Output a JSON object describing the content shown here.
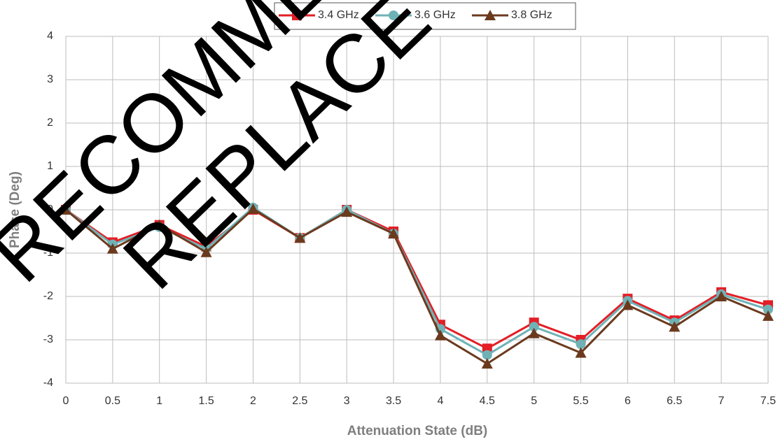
{
  "chart_data": {
    "type": "line",
    "x_label": "Attenuation State (dB)",
    "y_label": "Phase (Deg)",
    "x": [
      0,
      0.5,
      1,
      1.5,
      2,
      2.5,
      3,
      3.5,
      4,
      4.5,
      5,
      5.5,
      6,
      6.5,
      7,
      7.5
    ],
    "series": [
      {
        "name": "3.4 GHz",
        "color": "#e31e26",
        "marker": "square",
        "values": [
          0,
          -0.75,
          -0.35,
          -0.85,
          0,
          -0.65,
          0,
          -0.5,
          -2.65,
          -3.2,
          -2.6,
          -3.0,
          -2.05,
          -2.55,
          -1.9,
          -2.2
        ]
      },
      {
        "name": "3.6 GHz",
        "color": "#6fb2b6",
        "marker": "circle",
        "values": [
          0,
          -0.8,
          -0.4,
          -0.9,
          0.05,
          -0.65,
          0,
          -0.55,
          -2.75,
          -3.35,
          -2.7,
          -3.1,
          -2.1,
          -2.6,
          -1.95,
          -2.3
        ]
      },
      {
        "name": "3.8 GHz",
        "color": "#6b3a1e",
        "marker": "triangle",
        "values": [
          0,
          -0.9,
          -0.35,
          -0.98,
          0.02,
          -0.65,
          -0.05,
          -0.55,
          -2.9,
          -3.55,
          -2.85,
          -3.3,
          -2.2,
          -2.7,
          -2.0,
          -2.45
        ]
      }
    ],
    "xlim": [
      0,
      7.5
    ],
    "xticks": [
      0,
      0.5,
      1,
      1.5,
      2,
      2.5,
      3,
      3.5,
      4,
      4.5,
      5,
      5.5,
      6,
      6.5,
      7,
      7.5
    ],
    "ylim": [
      -4,
      4
    ],
    "yticks": [
      -4,
      -3,
      -2,
      -1,
      0,
      1,
      2,
      3,
      4
    ],
    "grid": true,
    "legend": "top",
    "annotations": [
      "RECOMMEN",
      "REPLACE W"
    ]
  }
}
